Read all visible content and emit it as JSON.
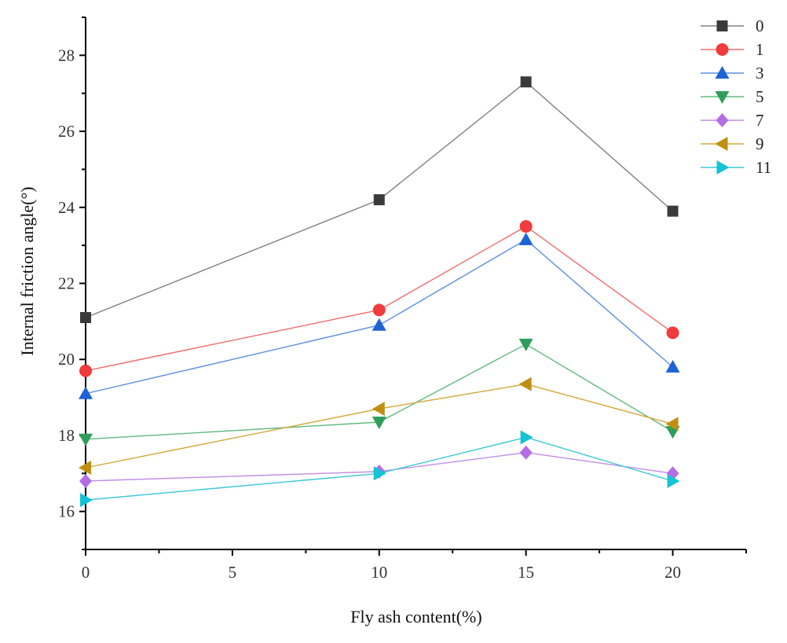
{
  "chart_data": {
    "type": "line",
    "title": "",
    "xlabel": "Fly ash content(%)",
    "ylabel": "Internal friction angle(°)",
    "x": [
      0,
      10,
      15,
      20
    ],
    "xlim": [
      0,
      22.5
    ],
    "ylim": [
      15,
      29
    ],
    "xticks": [
      0,
      5,
      10,
      15,
      20
    ],
    "yticks": [
      16,
      18,
      20,
      22,
      24,
      26,
      28
    ],
    "xtick_labels": [
      "0",
      "5",
      "10",
      "15",
      "20"
    ],
    "ytick_labels": [
      "16",
      "18",
      "20",
      "22",
      "24",
      "26",
      "28"
    ],
    "grid": false,
    "legend_position": "top-right",
    "series": [
      {
        "name": "0",
        "values": [
          21.1,
          24.2,
          27.3,
          23.9
        ],
        "color": "#808080",
        "marker": "square",
        "marker_color": "#3a3a3a"
      },
      {
        "name": "1",
        "values": [
          19.7,
          21.3,
          23.5,
          20.7
        ],
        "color": "#f26b6b",
        "marker": "circle",
        "marker_color": "#f03c3c"
      },
      {
        "name": "3",
        "values": [
          19.1,
          20.9,
          23.15,
          19.8
        ],
        "color": "#5b8fe0",
        "marker": "triangle-up",
        "marker_color": "#1e63d6"
      },
      {
        "name": "5",
        "values": [
          17.9,
          18.35,
          20.4,
          18.1
        ],
        "color": "#5fba7d",
        "marker": "triangle-down",
        "marker_color": "#2f9e5a"
      },
      {
        "name": "7",
        "values": [
          16.8,
          17.05,
          17.55,
          17.0
        ],
        "color": "#c08ce8",
        "marker": "diamond",
        "marker_color": "#b36ee6"
      },
      {
        "name": "9",
        "values": [
          17.15,
          18.7,
          19.35,
          18.3
        ],
        "color": "#d4a838",
        "marker": "triangle-left",
        "marker_color": "#c08f12"
      },
      {
        "name": "11",
        "values": [
          16.3,
          17.0,
          17.95,
          16.8
        ],
        "color": "#3cc8d6",
        "marker": "triangle-right",
        "marker_color": "#14c3d4"
      }
    ]
  }
}
